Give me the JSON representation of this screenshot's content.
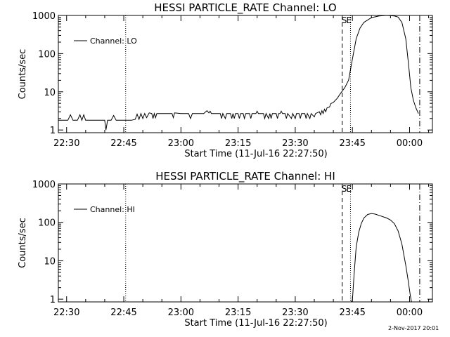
{
  "chart_data": [
    {
      "type": "line",
      "title": "HESSI PARTICLE_RATE Channel: LO",
      "xlabel": "Start Time (11-Jul-16 22:27:50)",
      "ylabel": "Counts/sec",
      "yscale": "log",
      "ylim": [
        0.85,
        1000
      ],
      "xlim": [
        "22:27:50",
        "00:06:00"
      ],
      "xticks": [
        "22:30",
        "22:45",
        "23:00",
        "23:15",
        "23:30",
        "23:45",
        "00:00"
      ],
      "yticks": [
        "1",
        "10",
        "100",
        "1000"
      ],
      "legend": {
        "label": "Channel: LO",
        "position": "top-left"
      },
      "event_markers": [
        {
          "time": "22:45:30",
          "style": "dotted",
          "label": ""
        },
        {
          "time": "23:42:20",
          "style": "dashed",
          "label": "S"
        },
        {
          "time": "23:44:30",
          "style": "dotted",
          "label": "E"
        },
        {
          "time": "00:02:40",
          "style": "dash-dot",
          "label": ""
        }
      ],
      "series": [
        {
          "name": "Channel: LO",
          "points": [
            [
              "22:27:50",
              1.8
            ],
            [
              "22:28:40",
              1.8
            ],
            [
              "22:29:30",
              1.8
            ],
            [
              "22:30:20",
              1.8
            ],
            [
              "22:31:00",
              2.5
            ],
            [
              "22:31:40",
              1.8
            ],
            [
              "22:32:50",
              1.8
            ],
            [
              "22:33:30",
              2.5
            ],
            [
              "22:34:00",
              1.8
            ],
            [
              "22:34:30",
              2.5
            ],
            [
              "22:35:00",
              1.8
            ],
            [
              "22:36:40",
              1.8
            ],
            [
              "22:37:20",
              1.8
            ],
            [
              "22:38:00",
              1.8
            ],
            [
              "22:39:20",
              1.8
            ],
            [
              "22:40:00",
              1.8
            ],
            [
              "22:40:20",
              1.0
            ],
            [
              "22:40:45",
              1.8
            ],
            [
              "22:41:40",
              1.8
            ],
            [
              "22:42:20",
              2.4
            ],
            [
              "22:43:00",
              1.8
            ],
            [
              "22:44:00",
              1.8
            ],
            [
              "22:45:00",
              1.8
            ],
            [
              "22:46:00",
              1.8
            ],
            [
              "22:47:00",
              1.8
            ],
            [
              "22:48:00",
              1.9
            ],
            [
              "22:48:30",
              2.6
            ],
            [
              "22:49:00",
              1.9
            ],
            [
              "22:49:30",
              2.7
            ],
            [
              "22:50:00",
              2.0
            ],
            [
              "22:50:30",
              2.7
            ],
            [
              "22:51:00",
              2.1
            ],
            [
              "22:51:40",
              2.8
            ],
            [
              "22:52:20",
              2.7
            ],
            [
              "22:52:40",
              2.0
            ],
            [
              "22:53:00",
              2.7
            ],
            [
              "22:53:20",
              2.1
            ],
            [
              "22:53:40",
              2.7
            ],
            [
              "22:55:00",
              2.7
            ],
            [
              "22:56:00",
              2.7
            ],
            [
              "22:57:00",
              2.7
            ],
            [
              "22:57:40",
              2.7
            ],
            [
              "22:58:00",
              2.1
            ],
            [
              "22:58:20",
              2.8
            ],
            [
              "23:00:00",
              2.7
            ],
            [
              "23:02:00",
              2.7
            ],
            [
              "23:02:30",
              2.0
            ],
            [
              "23:03:00",
              2.7
            ],
            [
              "23:05:00",
              2.7
            ],
            [
              "23:06:00",
              2.7
            ],
            [
              "23:06:20",
              2.9
            ],
            [
              "23:06:50",
              3.2
            ],
            [
              "23:07:20",
              2.8
            ],
            [
              "23:07:40",
              3.1
            ],
            [
              "23:08:00",
              2.7
            ],
            [
              "23:09:00",
              2.7
            ],
            [
              "23:10:20",
              2.7
            ],
            [
              "23:10:40",
              2.0
            ],
            [
              "23:11:00",
              2.7
            ],
            [
              "23:11:40",
              2.0
            ],
            [
              "23:12:00",
              2.7
            ],
            [
              "23:13:00",
              2.7
            ],
            [
              "23:13:20",
              2.0
            ],
            [
              "23:13:40",
              2.7
            ],
            [
              "23:14:00",
              2.0
            ],
            [
              "23:14:20",
              2.7
            ],
            [
              "23:15:00",
              2.7
            ],
            [
              "23:15:20",
              2.0
            ],
            [
              "23:15:40",
              2.7
            ],
            [
              "23:16:20",
              2.7
            ],
            [
              "23:16:40",
              2.0
            ],
            [
              "23:17:00",
              2.7
            ],
            [
              "23:18:00",
              2.7
            ],
            [
              "23:18:20",
              2.0
            ],
            [
              "23:18:40",
              2.7
            ],
            [
              "23:19:40",
              2.7
            ],
            [
              "23:20:00",
              3.1
            ],
            [
              "23:20:20",
              2.7
            ],
            [
              "23:21:00",
              2.7
            ],
            [
              "23:21:40",
              2.7
            ],
            [
              "23:22:00",
              2.0
            ],
            [
              "23:22:20",
              2.7
            ],
            [
              "23:23:00",
              2.0
            ],
            [
              "23:23:20",
              2.7
            ],
            [
              "23:23:40",
              2.0
            ],
            [
              "23:24:00",
              2.7
            ],
            [
              "23:25:00",
              2.7
            ],
            [
              "23:25:20",
              2.0
            ],
            [
              "23:25:40",
              2.7
            ],
            [
              "23:26:00",
              2.7
            ],
            [
              "23:26:20",
              3.1
            ],
            [
              "23:26:40",
              2.7
            ],
            [
              "23:27:20",
              2.7
            ],
            [
              "23:27:40",
              2.0
            ],
            [
              "23:28:00",
              2.7
            ],
            [
              "23:29:00",
              2.0
            ],
            [
              "23:29:20",
              2.7
            ],
            [
              "23:30:00",
              2.0
            ],
            [
              "23:30:20",
              2.7
            ],
            [
              "23:31:00",
              2.7
            ],
            [
              "23:31:20",
              2.0
            ],
            [
              "23:31:40",
              2.7
            ],
            [
              "23:32:30",
              2.7
            ],
            [
              "23:32:50",
              2.0
            ],
            [
              "23:33:10",
              2.7
            ],
            [
              "23:33:50",
              2.0
            ],
            [
              "23:34:10",
              2.7
            ],
            [
              "23:35:00",
              2.2
            ],
            [
              "23:35:20",
              2.7
            ],
            [
              "23:36:20",
              3.0
            ],
            [
              "23:36:40",
              2.5
            ],
            [
              "23:37:00",
              3.2
            ],
            [
              "23:37:20",
              2.7
            ],
            [
              "23:37:40",
              3.5
            ],
            [
              "23:38:00",
              3.0
            ],
            [
              "23:38:20",
              3.8
            ],
            [
              "23:39:00",
              4.0
            ],
            [
              "23:39:20",
              4.9
            ],
            [
              "23:40:00",
              5.3
            ],
            [
              "23:41:00",
              6.7
            ],
            [
              "23:42:00",
              9.4
            ],
            [
              "23:43:00",
              12.9
            ],
            [
              "23:44:00",
              20.3
            ],
            [
              "23:45:00",
              72
            ],
            [
              "23:46:00",
              246
            ],
            [
              "23:47:00",
              465
            ],
            [
              "23:48:00",
              659
            ],
            [
              "23:50:00",
              876
            ],
            [
              "23:52:00",
              968
            ],
            [
              "23:54:00",
              1000
            ],
            [
              "23:56:00",
              968
            ],
            [
              "23:57:00",
              906
            ],
            [
              "23:58:00",
              659
            ],
            [
              "23:59:00",
              246
            ],
            [
              "23:59:45",
              51
            ],
            [
              "00:00:20",
              12.9
            ],
            [
              "00:01:00",
              6.0
            ],
            [
              "00:01:40",
              3.8
            ],
            [
              "00:02:20",
              2.7
            ]
          ]
        }
      ]
    },
    {
      "type": "line",
      "title": "HESSI PARTICLE_RATE Channel: HI",
      "xlabel": "Start Time (11-Jul-16 22:27:50)",
      "ylabel": "Counts/sec",
      "yscale": "log",
      "ylim": [
        0.85,
        1000
      ],
      "xlim": [
        "22:27:50",
        "00:06:00"
      ],
      "xticks": [
        "22:30",
        "22:45",
        "23:00",
        "23:15",
        "23:30",
        "23:45",
        "00:00"
      ],
      "yticks": [
        "1",
        "10",
        "100",
        "1000"
      ],
      "legend": {
        "label": "Channel: HI",
        "position": "top-left"
      },
      "event_markers": [
        {
          "time": "22:45:30",
          "style": "dotted",
          "label": ""
        },
        {
          "time": "23:42:20",
          "style": "dashed",
          "label": "S"
        },
        {
          "time": "23:44:30",
          "style": "dotted",
          "label": "E"
        },
        {
          "time": "00:02:40",
          "style": "dash-dot",
          "label": ""
        }
      ],
      "series": [
        {
          "name": "Channel: HI",
          "points": [
            [
              "23:44:40",
              0.85
            ],
            [
              "23:45:00",
              0.95
            ],
            [
              "23:45:30",
              5.3
            ],
            [
              "23:46:00",
              23
            ],
            [
              "23:46:40",
              55
            ],
            [
              "23:47:20",
              93
            ],
            [
              "23:48:00",
              130
            ],
            [
              "23:49:00",
              160
            ],
            [
              "23:50:00",
              170
            ],
            [
              "23:51:00",
              164
            ],
            [
              "23:52:00",
              152
            ],
            [
              "23:54:00",
              130
            ],
            [
              "23:55:00",
              115
            ],
            [
              "23:56:00",
              93
            ],
            [
              "23:57:00",
              60
            ],
            [
              "23:58:00",
              27
            ],
            [
              "23:59:00",
              7.6
            ],
            [
              "23:59:40",
              2.9
            ],
            [
              "00:00:10",
              1.3
            ],
            [
              "00:00:30",
              0.85
            ]
          ]
        }
      ]
    }
  ],
  "footer": {
    "timestamp": "2-Nov-2017 20:01"
  }
}
